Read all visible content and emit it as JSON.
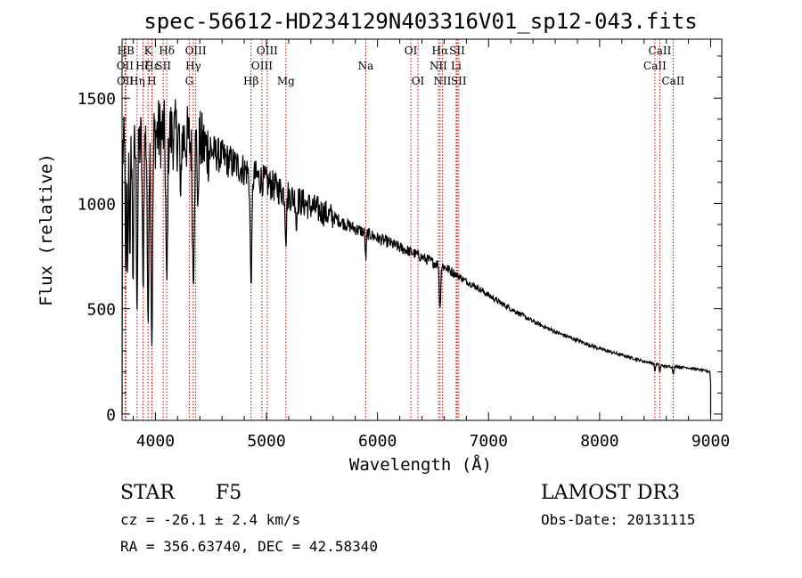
{
  "chart_data": {
    "type": "line",
    "title": "spec-56612-HD234129N403316V01_sp12-043.fits",
    "xlabel": "Wavelength (Å)",
    "ylabel": "Flux (relative)",
    "xlim": [
      3700,
      9100
    ],
    "ylim": [
      -30,
      1780
    ],
    "x_ticks": [
      4000,
      5000,
      6000,
      7000,
      8000,
      9000
    ],
    "y_ticks": [
      0,
      500,
      1000,
      1500
    ],
    "continuum": {
      "x": [
        3700,
        3800,
        3900,
        4000,
        4100,
        4200,
        4300,
        4400,
        4500,
        4600,
        4700,
        4800,
        4900,
        5000,
        5100,
        5200,
        5300,
        5400,
        5500,
        5600,
        5700,
        5800,
        5900,
        6000,
        6100,
        6200,
        6300,
        6400,
        6500,
        6600,
        6700,
        6800,
        6900,
        7000,
        7100,
        7200,
        7300,
        7400,
        7500,
        7600,
        7700,
        7800,
        7900,
        8000,
        8100,
        8200,
        8300,
        8400,
        8500,
        8600,
        8700,
        8800,
        8900,
        9000
      ],
      "y": [
        1250,
        1260,
        1300,
        1330,
        1340,
        1320,
        1300,
        1280,
        1250,
        1220,
        1190,
        1160,
        1130,
        1100,
        1070,
        1040,
        1010,
        985,
        960,
        935,
        905,
        880,
        860,
        835,
        815,
        790,
        770,
        745,
        720,
        700,
        665,
        630,
        600,
        565,
        530,
        500,
        470,
        440,
        415,
        390,
        370,
        350,
        330,
        310,
        295,
        280,
        265,
        250,
        240,
        225,
        225,
        220,
        210,
        200
      ]
    },
    "spectral_lines": [
      {
        "name": "HB",
        "wavelength": 3734,
        "row": 1
      },
      {
        "name": "OII",
        "wavelength": 3727,
        "row": 2
      },
      {
        "name": "OII",
        "wavelength": 3729,
        "row": 3
      },
      {
        "name": "Hη",
        "wavelength": 3835,
        "row": 3
      },
      {
        "name": "Hζ",
        "wavelength": 3889,
        "row": 2
      },
      {
        "name": "Hε",
        "wavelength": 3970,
        "row": 2
      },
      {
        "name": "K",
        "wavelength": 3934,
        "row": 1
      },
      {
        "name": "H",
        "wavelength": 3968,
        "row": 3
      },
      {
        "name": "SII",
        "wavelength": 4070,
        "row": 2
      },
      {
        "name": "Hδ",
        "wavelength": 4102,
        "row": 1
      },
      {
        "name": "OIII",
        "wavelength": 4363,
        "row": 1
      },
      {
        "name": "Hγ",
        "wavelength": 4341,
        "row": 2
      },
      {
        "name": "G",
        "wavelength": 4305,
        "row": 3
      },
      {
        "name": "Hβ",
        "wavelength": 4861,
        "row": 3
      },
      {
        "name": "OIII",
        "wavelength": 4959,
        "row": 2
      },
      {
        "name": "OIII",
        "wavelength": 5007,
        "row": 1
      },
      {
        "name": "Mg",
        "wavelength": 5175,
        "row": 3
      },
      {
        "name": "Na",
        "wavelength": 5894,
        "row": 2
      },
      {
        "name": "OI",
        "wavelength": 6300,
        "row": 1
      },
      {
        "name": "OI",
        "wavelength": 6364,
        "row": 3
      },
      {
        "name": "Hα",
        "wavelength": 6563,
        "row": 1
      },
      {
        "name": "NII",
        "wavelength": 6548,
        "row": 2
      },
      {
        "name": "NII",
        "wavelength": 6584,
        "row": 3
      },
      {
        "name": "Li",
        "wavelength": 6708,
        "row": 2
      },
      {
        "name": "SII",
        "wavelength": 6717,
        "row": 1
      },
      {
        "name": "SII",
        "wavelength": 6731,
        "row": 3
      },
      {
        "name": "CaII",
        "wavelength": 8498,
        "row": 2
      },
      {
        "name": "CaII",
        "wavelength": 8542,
        "row": 1
      },
      {
        "name": "CaII",
        "wavelength": 8662,
        "row": 3
      }
    ]
  },
  "footer": {
    "object_class": "STAR",
    "subclass": "F5",
    "cz": "cz = -26.1 ± 2.4 km/s",
    "coords": "RA = 356.63740, DEC =  42.58340",
    "survey": "LAMOST DR3",
    "obs_date": "Obs-Date: 20131115"
  },
  "colors": {
    "axis": "#000000",
    "spectrum": "#000000",
    "line_marker": "#cc0000"
  }
}
